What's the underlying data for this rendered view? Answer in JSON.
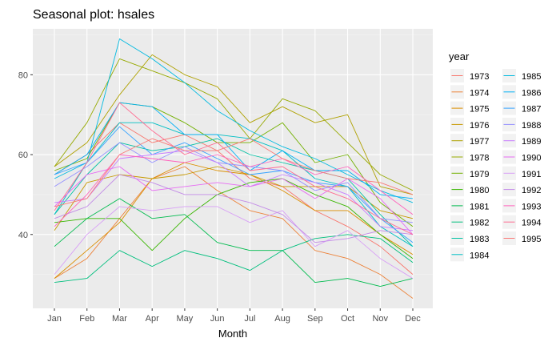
{
  "chart_data": {
    "type": "line",
    "title": "Seasonal plot: hsales",
    "xlabel": "Month",
    "ylabel": "",
    "categories": [
      "Jan",
      "Feb",
      "Mar",
      "Apr",
      "May",
      "Jun",
      "Jul",
      "Aug",
      "Sep",
      "Oct",
      "Nov",
      "Dec"
    ],
    "y_ticks": [
      40,
      60,
      80
    ],
    "ylim": [
      21.5,
      91.5
    ],
    "grid": true,
    "legend_position": "right",
    "legend_title": "year",
    "series": [
      {
        "name": "1973",
        "color": "#F8766D",
        "values": [
          55,
          60,
          68,
          63,
          65,
          61,
          54,
          52,
          46,
          42,
          37,
          30
        ]
      },
      {
        "name": "1974",
        "color": "#EC8239",
        "values": [
          29,
          34,
          44,
          54,
          57,
          51,
          46,
          44,
          36,
          34,
          30,
          24
        ]
      },
      {
        "name": "1975",
        "color": "#DB8E00",
        "values": [
          29,
          36,
          43,
          54,
          58,
          56,
          55,
          51,
          46,
          46,
          40,
          35
        ]
      },
      {
        "name": "1976",
        "color": "#C79800",
        "values": [
          41,
          53,
          55,
          54,
          55,
          57,
          55,
          52,
          52,
          52,
          46,
          44
        ]
      },
      {
        "name": "1977",
        "color": "#AFA100",
        "values": [
          57,
          63,
          75,
          85,
          80,
          77,
          68,
          72,
          68,
          70,
          52,
          50
        ]
      },
      {
        "name": "1978",
        "color": "#96A900",
        "values": [
          57,
          68,
          84,
          81,
          78,
          74,
          64,
          74,
          71,
          63,
          55,
          51
        ]
      },
      {
        "name": "1979",
        "color": "#72B000",
        "values": [
          56,
          59,
          73,
          72,
          68,
          63,
          63,
          68,
          58,
          60,
          48,
          42
        ]
      },
      {
        "name": "1980",
        "color": "#39B600",
        "values": [
          43,
          44,
          44,
          36,
          44,
          50,
          53,
          54,
          50,
          47,
          40,
          34
        ]
      },
      {
        "name": "1981",
        "color": "#00BB4E",
        "values": [
          37,
          44,
          49,
          44,
          45,
          38,
          36,
          36,
          28,
          29,
          27,
          29
        ]
      },
      {
        "name": "1982",
        "color": "#00BF7D",
        "values": [
          28,
          29,
          36,
          32,
          36,
          34,
          31,
          36,
          39,
          40,
          39,
          33
        ]
      },
      {
        "name": "1983",
        "color": "#00C1A3",
        "values": [
          45,
          55,
          63,
          61,
          62,
          64,
          60,
          58,
          56,
          54,
          45,
          37
        ]
      },
      {
        "name": "1984",
        "color": "#00BFC4",
        "values": [
          45,
          58,
          68,
          68,
          65,
          65,
          64,
          61,
          54,
          52,
          42,
          37
        ]
      },
      {
        "name": "1985",
        "color": "#00BAE0",
        "values": [
          54,
          58,
          89,
          84,
          78,
          71,
          66,
          62,
          59,
          55,
          51,
          48
        ]
      },
      {
        "name": "1986",
        "color": "#00B0F6",
        "values": [
          55,
          60,
          73,
          72,
          65,
          65,
          56,
          61,
          56,
          56,
          50,
          49
        ]
      },
      {
        "name": "1987",
        "color": "#35A2FF",
        "values": [
          55,
          58,
          67,
          60,
          63,
          59,
          55,
          56,
          53,
          52,
          44,
          38
        ]
      },
      {
        "name": "1988",
        "color": "#9590FF",
        "values": [
          52,
          57,
          63,
          58,
          62,
          58,
          57,
          56,
          51,
          53,
          44,
          43
        ]
      },
      {
        "name": "1989",
        "color": "#C77CFF",
        "values": [
          48,
          49,
          59,
          60,
          61,
          58,
          52,
          55,
          53,
          50,
          42,
          41
        ]
      },
      {
        "name": "1990",
        "color": "#E76BF3",
        "values": [
          47,
          55,
          57,
          51,
          52,
          53,
          52,
          54,
          49,
          54,
          49,
          40
        ]
      },
      {
        "name": "1991",
        "color": "#D89FF6",
        "values": [
          30,
          40,
          47,
          46,
          47,
          47,
          43,
          46,
          37,
          41,
          34,
          29
        ]
      },
      {
        "name": "1992",
        "color": "#C38BE8",
        "values": [
          44,
          47,
          55,
          53,
          50,
          50,
          48,
          45,
          38,
          39,
          41,
          40
        ]
      },
      {
        "name": "1993",
        "color": "#FF62BC",
        "values": [
          42,
          50,
          60,
          59,
          58,
          60,
          57,
          59,
          55,
          57,
          51,
          45
        ]
      },
      {
        "name": "1994",
        "color": "#FF6C91",
        "values": [
          46,
          58,
          73,
          66,
          60,
          63,
          56,
          57,
          52,
          49,
          44,
          40
        ]
      },
      {
        "name": "1995",
        "color": "#FA7876",
        "values": [
          47,
          49,
          60,
          64,
          61,
          61,
          64,
          59,
          56,
          54,
          53,
          50
        ]
      }
    ]
  }
}
